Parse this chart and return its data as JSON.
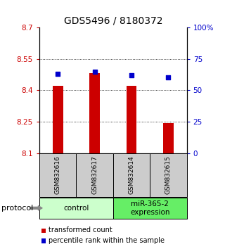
{
  "title": "GDS5496 / 8180372",
  "samples": [
    "GSM832616",
    "GSM832617",
    "GSM832614",
    "GSM832615"
  ],
  "bar_values": [
    8.42,
    8.48,
    8.42,
    8.245
  ],
  "dot_values_pct": [
    63,
    65,
    62,
    60
  ],
  "ylim_left": [
    8.1,
    8.7
  ],
  "ylim_right": [
    0,
    100
  ],
  "yticks_left": [
    8.1,
    8.25,
    8.4,
    8.55,
    8.7
  ],
  "ytick_labels_left": [
    "8.1",
    "8.25",
    "8.4",
    "8.55",
    "8.7"
  ],
  "yticks_right": [
    0,
    25,
    50,
    75,
    100
  ],
  "ytick_labels_right": [
    "0",
    "25",
    "50",
    "75",
    "100%"
  ],
  "bar_color": "#cc0000",
  "dot_color": "#0000cc",
  "bar_bottom": 8.1,
  "grid_lines": [
    8.25,
    8.4,
    8.55
  ],
  "control_color": "#ccffcc",
  "treatment_color": "#66ee66",
  "sample_box_color": "#cccccc",
  "legend_items": [
    "transformed count",
    "percentile rank within the sample"
  ],
  "protocol_label": "protocol",
  "title_fontsize": 10,
  "tick_fontsize": 7.5,
  "sample_fontsize": 6.5,
  "group_fontsize": 7.5,
  "legend_fontsize": 7
}
